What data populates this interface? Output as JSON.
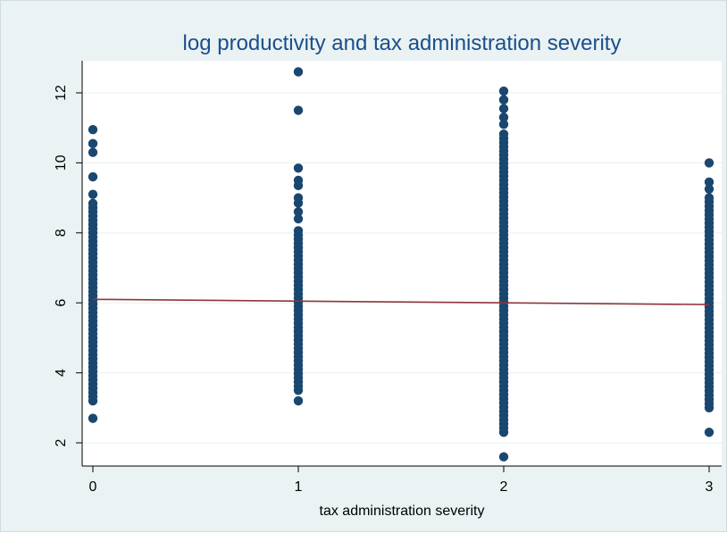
{
  "colors": {
    "background": "#eaf2f3",
    "plot_area": "#ffffff",
    "grid": "#eaf2f3",
    "marker": "#1a476f",
    "fit_line": "#90353b",
    "title": "#1a4f8b"
  },
  "chart_data": {
    "type": "scatter",
    "title": "log productivity and tax administration severity",
    "xlabel": "tax administration severity",
    "ylabel": "",
    "x_ticks": [
      "0",
      "1",
      "2",
      "3"
    ],
    "y_ticks": [
      "2",
      "4",
      "6",
      "8",
      "10",
      "12"
    ],
    "xlim": [
      0,
      3
    ],
    "ylim": [
      1.4,
      13.0
    ],
    "grid": true,
    "groups": [
      {
        "x": 0,
        "min": 3.2,
        "max": 8.9,
        "outliers": [
          2.7,
          9.1,
          9.6,
          10.3,
          10.55,
          10.95
        ]
      },
      {
        "x": 1,
        "min": 3.5,
        "max": 8.1,
        "outliers": [
          3.2,
          8.4,
          8.6,
          8.85,
          9.0,
          9.35,
          9.5,
          9.85,
          11.5,
          12.6
        ]
      },
      {
        "x": 2,
        "min": 2.3,
        "max": 10.9,
        "outliers": [
          1.6,
          11.1,
          11.3,
          11.55,
          11.8,
          12.05
        ]
      },
      {
        "x": 3,
        "min": 3.0,
        "max": 9.0,
        "outliers": [
          2.3,
          9.25,
          9.45,
          10.0
        ]
      }
    ],
    "fit_line": {
      "x": [
        0,
        3
      ],
      "y": [
        6.1,
        5.95
      ]
    }
  }
}
